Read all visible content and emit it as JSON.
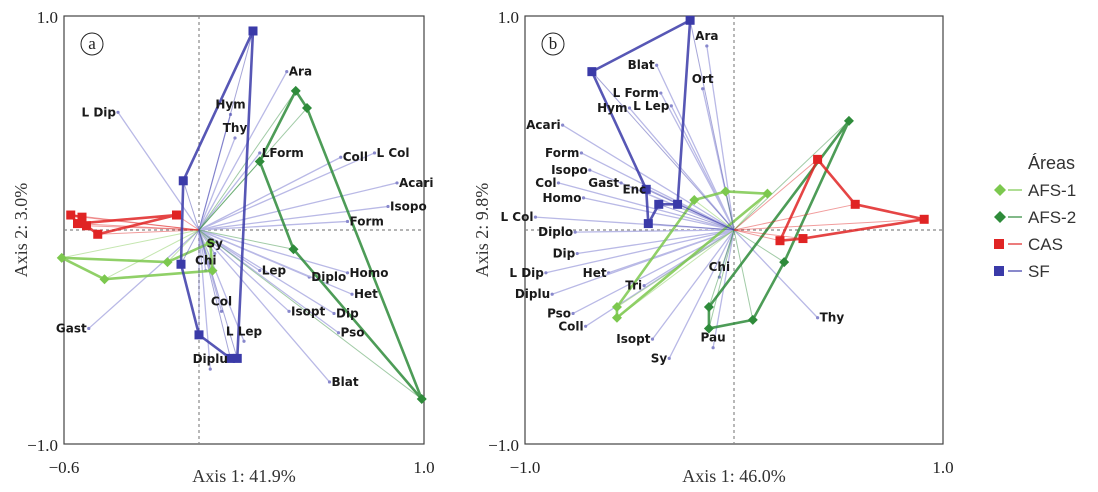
{
  "legend": {
    "title": "Áreas",
    "items": [
      {
        "name": "AFS-1",
        "color": "#7cc84e",
        "marker": "diamond"
      },
      {
        "name": "AFS-2",
        "color": "#2e8b3a",
        "marker": "diamond"
      },
      {
        "name": "CAS",
        "color": "#e02424",
        "marker": "square"
      },
      {
        "name": "SF",
        "color": "#3a3aa8",
        "marker": "square"
      }
    ]
  },
  "chart_data": [
    {
      "type": "scatter",
      "panel_label": "a",
      "xlabel": "Axis 1: 41.9%",
      "ylabel": "Axis 2: 3.0%",
      "xlim": [
        -0.6,
        1.0
      ],
      "ylim": [
        -1.0,
        1.0
      ],
      "x_ticks": [
        "−0.6",
        "1.0"
      ],
      "y_ticks": [
        "1.0",
        "−1.0"
      ],
      "origin": [
        0,
        0
      ],
      "vector_color": "#b9b9e6",
      "vectors": [
        {
          "label": "Ara",
          "x": 0.39,
          "y": 0.74
        },
        {
          "label": "L Dip",
          "x": -0.36,
          "y": 0.55
        },
        {
          "label": "Hym",
          "x": 0.14,
          "y": 0.54
        },
        {
          "label": "Thy",
          "x": 0.16,
          "y": 0.43
        },
        {
          "label": "LForm",
          "x": 0.27,
          "y": 0.36
        },
        {
          "label": "Coll",
          "x": 0.63,
          "y": 0.34
        },
        {
          "label": "L Col",
          "x": 0.78,
          "y": 0.36
        },
        {
          "label": "Acari",
          "x": 0.88,
          "y": 0.22
        },
        {
          "label": "Isopo",
          "x": 0.84,
          "y": 0.11
        },
        {
          "label": "Form",
          "x": 0.66,
          "y": 0.04
        },
        {
          "label": "Sy",
          "x": 0.07,
          "y": -0.11
        },
        {
          "label": "Chi",
          "x": 0.03,
          "y": -0.19
        },
        {
          "label": "Lep",
          "x": 0.27,
          "y": -0.19
        },
        {
          "label": "Diplo",
          "x": 0.49,
          "y": -0.22
        },
        {
          "label": "Homo",
          "x": 0.66,
          "y": -0.2
        },
        {
          "label": "Het",
          "x": 0.68,
          "y": -0.3
        },
        {
          "label": "Isopt",
          "x": 0.4,
          "y": -0.38
        },
        {
          "label": "Dip",
          "x": 0.6,
          "y": -0.39
        },
        {
          "label": "Col",
          "x": 0.1,
          "y": -0.38
        },
        {
          "label": "Pso",
          "x": 0.62,
          "y": -0.48
        },
        {
          "label": "L Lep",
          "x": 0.2,
          "y": -0.52
        },
        {
          "label": "Gast",
          "x": -0.49,
          "y": -0.46
        },
        {
          "label": "Diplu",
          "x": 0.05,
          "y": -0.65
        },
        {
          "label": "Blat",
          "x": 0.58,
          "y": -0.71
        }
      ],
      "groups": [
        {
          "name": "AFS-1",
          "points": [
            [
              -0.61,
              -0.13
            ],
            [
              -0.42,
              -0.23
            ],
            [
              0.06,
              -0.19
            ],
            [
              0.05,
              -0.06
            ],
            [
              -0.14,
              -0.15
            ]
          ]
        },
        {
          "name": "AFS-2",
          "points": [
            [
              0.43,
              0.65
            ],
            [
              0.48,
              0.57
            ],
            [
              0.99,
              -0.79
            ],
            [
              0.42,
              -0.09
            ],
            [
              0.27,
              0.32
            ]
          ]
        },
        {
          "name": "CAS",
          "points": [
            [
              -0.57,
              0.07
            ],
            [
              -0.52,
              0.06
            ],
            [
              -0.5,
              0.02
            ],
            [
              -0.45,
              -0.02
            ],
            [
              -0.1,
              0.07
            ],
            [
              -0.54,
              0.03
            ]
          ]
        },
        {
          "name": "SF",
          "points": [
            [
              0.24,
              0.93
            ],
            [
              -0.07,
              0.23
            ],
            [
              -0.08,
              -0.16
            ],
            [
              0.0,
              -0.49
            ],
            [
              0.14,
              -0.6
            ],
            [
              0.17,
              -0.6
            ]
          ]
        }
      ]
    },
    {
      "type": "scatter",
      "panel_label": "b",
      "xlabel": "Axis 1: 46.0%",
      "ylabel": "Axis 2: 9.8%",
      "xlim": [
        -1.0,
        1.0
      ],
      "ylim": [
        -1.0,
        1.0
      ],
      "x_ticks": [
        "−1.0",
        "1.0"
      ],
      "y_ticks": [
        "1.0",
        "−1.0"
      ],
      "origin": [
        0,
        0
      ],
      "vector_color": "#b9b9e6",
      "vectors": [
        {
          "label": "Ara",
          "x": -0.13,
          "y": 0.86
        },
        {
          "label": "Blat",
          "x": -0.37,
          "y": 0.77
        },
        {
          "label": "Ort",
          "x": -0.15,
          "y": 0.66
        },
        {
          "label": "L Form",
          "x": -0.35,
          "y": 0.64
        },
        {
          "label": "L Lep",
          "x": -0.3,
          "y": 0.58
        },
        {
          "label": "Hym",
          "x": -0.5,
          "y": 0.57
        },
        {
          "label": "Acari",
          "x": -0.82,
          "y": 0.49
        },
        {
          "label": "Form",
          "x": -0.73,
          "y": 0.36
        },
        {
          "label": "Isopo",
          "x": -0.69,
          "y": 0.28
        },
        {
          "label": "Gast",
          "x": -0.54,
          "y": 0.22
        },
        {
          "label": "Col",
          "x": -0.84,
          "y": 0.22
        },
        {
          "label": "Enc",
          "x": -0.41,
          "y": 0.19
        },
        {
          "label": "Homo",
          "x": -0.72,
          "y": 0.15
        },
        {
          "label": "L Col",
          "x": -0.95,
          "y": 0.06
        },
        {
          "label": "Diplo",
          "x": -0.76,
          "y": -0.01
        },
        {
          "label": "Dip",
          "x": -0.75,
          "y": -0.11
        },
        {
          "label": "L Dip",
          "x": -0.9,
          "y": -0.2
        },
        {
          "label": "Het",
          "x": -0.6,
          "y": -0.2
        },
        {
          "label": "Tri",
          "x": -0.43,
          "y": -0.26
        },
        {
          "label": "Diplu",
          "x": -0.87,
          "y": -0.3
        },
        {
          "label": "Chi",
          "x": -0.07,
          "y": -0.22
        },
        {
          "label": "Pso",
          "x": -0.77,
          "y": -0.39
        },
        {
          "label": "Coll",
          "x": -0.71,
          "y": -0.45
        },
        {
          "label": "Thy",
          "x": 0.4,
          "y": -0.41
        },
        {
          "label": "Isopt",
          "x": -0.39,
          "y": -0.51
        },
        {
          "label": "Sy",
          "x": -0.31,
          "y": -0.6
        },
        {
          "label": "Pau",
          "x": -0.1,
          "y": -0.55
        }
      ],
      "groups": [
        {
          "name": "AFS-1",
          "points": [
            [
              -0.56,
              -0.41
            ],
            [
              -0.56,
              -0.36
            ],
            [
              -0.19,
              0.14
            ],
            [
              -0.04,
              0.18
            ],
            [
              0.16,
              0.17
            ]
          ]
        },
        {
          "name": "AFS-2",
          "points": [
            [
              0.55,
              0.51
            ],
            [
              0.24,
              -0.15
            ],
            [
              0.09,
              -0.42
            ],
            [
              -0.12,
              -0.46
            ],
            [
              -0.12,
              -0.36
            ]
          ]
        },
        {
          "name": "CAS",
          "points": [
            [
              0.4,
              0.33
            ],
            [
              0.58,
              0.12
            ],
            [
              0.91,
              0.05
            ],
            [
              0.33,
              -0.04
            ],
            [
              0.22,
              -0.05
            ]
          ]
        },
        {
          "name": "SF",
          "points": [
            [
              -0.68,
              0.74
            ],
            [
              -0.21,
              0.98
            ],
            [
              -0.27,
              0.12
            ],
            [
              -0.36,
              0.12
            ],
            [
              -0.41,
              0.03
            ],
            [
              -0.42,
              0.19
            ]
          ]
        }
      ]
    }
  ]
}
